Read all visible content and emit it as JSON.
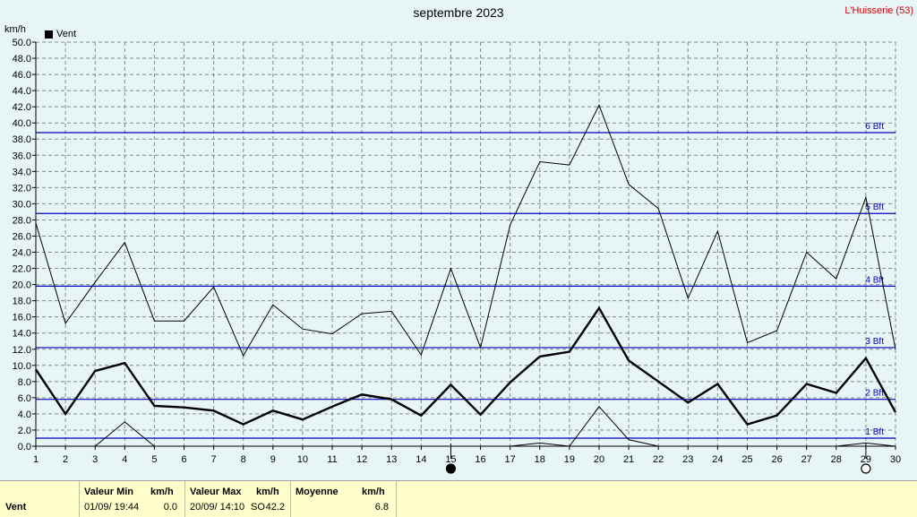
{
  "title": "septembre 2023",
  "station": "L'Huisserie (53)",
  "unit_label": "km/h",
  "legend": "Vent",
  "colors": {
    "background": "#e8f5f7",
    "beaufort_lines": "#0000c0",
    "series": "#000000",
    "footer": "#ffffcc"
  },
  "footer": {
    "param": "Vent",
    "min_header": "Valeur Min",
    "min_unit": "km/h",
    "min_date": "01/09/  19:44",
    "min_value": "0.0",
    "max_header": "Valeur Max",
    "max_unit": "km/h",
    "max_date": "20/09/  14:10",
    "max_dir": "SO",
    "max_value": "42.2",
    "avg_header": "Moyenne",
    "avg_unit": "km/h",
    "avg_value": "6.8"
  },
  "chart_data": {
    "type": "line",
    "title": "septembre 2023",
    "ylabel": "km/h",
    "ylim": [
      0,
      50
    ],
    "yticks": [
      "0.0",
      "2.0",
      "4.0",
      "6.0",
      "8.0",
      "10.0",
      "12.0",
      "14.0",
      "16.0",
      "18.0",
      "20.0",
      "22.0",
      "24.0",
      "26.0",
      "28.0",
      "30.0",
      "32.0",
      "34.0",
      "36.0",
      "38.0",
      "40.0",
      "42.0",
      "44.0",
      "46.0",
      "48.0",
      "50.0"
    ],
    "x": [
      1,
      2,
      3,
      4,
      5,
      6,
      7,
      8,
      9,
      10,
      11,
      12,
      13,
      14,
      15,
      16,
      17,
      18,
      19,
      20,
      21,
      22,
      23,
      24,
      25,
      26,
      27,
      28,
      29,
      30
    ],
    "xticks": [
      "1",
      "2",
      "3",
      "4",
      "5",
      "6",
      "7",
      "8",
      "9",
      "10",
      "11",
      "12",
      "13",
      "14",
      "15",
      "16",
      "17",
      "18",
      "19",
      "20",
      "21",
      "22",
      "23",
      "24",
      "25",
      "26",
      "27",
      "28",
      "29",
      "30"
    ],
    "grid": true,
    "legend_position": "top-left",
    "series": [
      {
        "name": "Vent",
        "style": "bold",
        "values": [
          9.5,
          4.0,
          9.3,
          10.3,
          5.0,
          4.8,
          4.4,
          2.7,
          4.4,
          3.3,
          4.9,
          6.4,
          5.8,
          3.8,
          7.6,
          3.9,
          7.9,
          11.1,
          11.7,
          17.1,
          10.6,
          8.0,
          5.4,
          7.7,
          2.7,
          3.8,
          7.7,
          6.6,
          10.9,
          4.2
        ]
      },
      {
        "values": [
          27.6,
          15.2,
          20.3,
          25.2,
          15.5,
          15.5,
          19.7,
          11.2,
          17.5,
          14.5,
          13.9,
          16.4,
          16.7,
          11.3,
          22.0,
          12.2,
          27.4,
          35.2,
          34.8,
          42.2,
          32.4,
          29.4,
          18.3,
          26.6,
          12.8,
          14.3,
          24.0,
          20.7,
          30.8,
          12.0
        ]
      },
      {
        "values": [
          0,
          0,
          0,
          3.0,
          0,
          0,
          0,
          0,
          0,
          0,
          0,
          0,
          0,
          0,
          0,
          0,
          0,
          0.4,
          0,
          4.9,
          0.8,
          0,
          0,
          0,
          0,
          0,
          0,
          0,
          0.4,
          0
        ]
      }
    ],
    "reference_lines": [
      {
        "label": "1 Bft",
        "value": 1.0
      },
      {
        "label": "2 Bft",
        "value": 5.8
      },
      {
        "label": "3 Bft",
        "value": 12.2
      },
      {
        "label": "4 Bft",
        "value": 19.8
      },
      {
        "label": "5 Bft",
        "value": 28.8
      },
      {
        "label": "6 Bft",
        "value": 38.8
      }
    ],
    "moon_phases": [
      {
        "day": 15,
        "phase": "new-moon"
      },
      {
        "day": 29,
        "phase": "full-moon"
      }
    ]
  }
}
